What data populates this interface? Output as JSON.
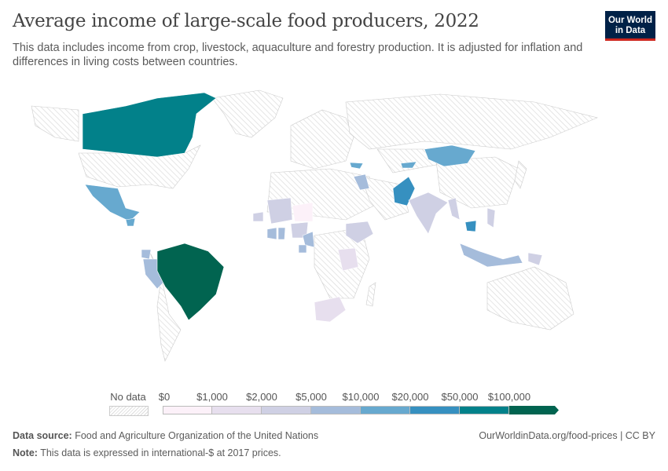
{
  "header": {
    "title": "Average income of large-scale food producers, 2022",
    "subtitle": "This data includes income from crop, livestock, aquaculture and forestry production. It is adjusted for inflation and differences in living costs between countries.",
    "logo_text": "Our World in Data"
  },
  "legend": {
    "no_data_label": "No data",
    "bins": [
      "$0",
      "$1,000",
      "$2,000",
      "$5,000",
      "$10,000",
      "$20,000",
      "$50,000",
      "$100,000"
    ],
    "colors": [
      "#fcf1f9",
      "#e7dfee",
      "#cfd0e4",
      "#a5bcdb",
      "#67a9cf",
      "#3690c0",
      "#02818a",
      "#016450"
    ],
    "no_data_color": "#e8e8e8"
  },
  "map_fills": {
    "canada": 6,
    "mexico": 4,
    "guatemala": 4,
    "peru": 3,
    "ecuador": 3,
    "brazil": 7,
    "mongolia": 4,
    "pakistan": 5,
    "iraq": 3,
    "georgia": 4,
    "kyrgyzstan": 4,
    "india": 2,
    "myanmar": 2,
    "cambodia": 5,
    "indonesia": 3,
    "philippines": 2,
    "papua": 2,
    "mali": 2,
    "niger": 0,
    "nigeria": 2,
    "ghana": 3,
    "ivory_coast": 3,
    "cameroon": 3,
    "gabon": 3,
    "ethiopia": 2,
    "tanzania": 1,
    "south_africa": 1,
    "senegal": 2
  },
  "footer": {
    "source_label": "Data source:",
    "source": "Food and Agriculture Organization of the United Nations",
    "note_label": "Note:",
    "note": "This data is expressed in international-$ at 2017 prices.",
    "link": "OurWorldinData.org/food-prices | CC BY"
  }
}
